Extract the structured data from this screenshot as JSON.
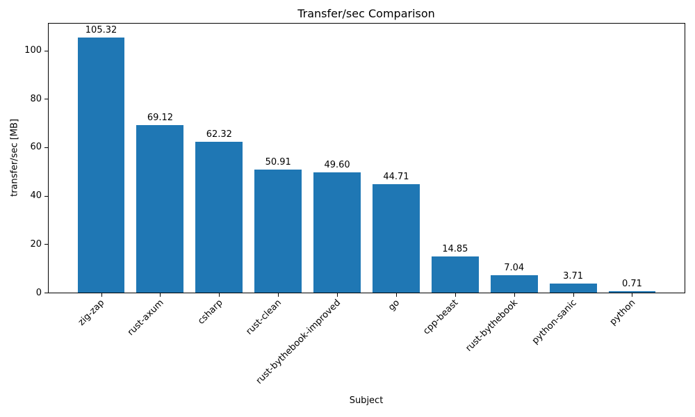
{
  "chart_data": {
    "type": "bar",
    "title": "Transfer/sec Comparison",
    "xlabel": "Subject",
    "ylabel": "transfer/sec [MB]",
    "categories": [
      "zig-zap",
      "rust-axum",
      "csharp",
      "rust-clean",
      "rust-bythebook-improved",
      "go",
      "cpp-beast",
      "rust-bythebook",
      "python-sanic",
      "python"
    ],
    "values": [
      105.32,
      69.12,
      62.32,
      50.91,
      49.6,
      44.71,
      14.85,
      7.04,
      3.71,
      0.71
    ],
    "bar_labels": [
      "105.32",
      "69.12",
      "62.32",
      "50.91",
      "49.60",
      "44.71",
      "14.85",
      "7.04",
      "3.71",
      "0.71"
    ],
    "yticks": [
      0,
      20,
      40,
      60,
      80,
      100
    ],
    "ylim": [
      0,
      111.1
    ],
    "xlim": [
      -0.89,
      9.89
    ],
    "bar_width_units": 0.8,
    "bar_color": "#1f77b4",
    "grid": false,
    "legend_position": "none",
    "x_tick_rotation_deg": 45
  }
}
